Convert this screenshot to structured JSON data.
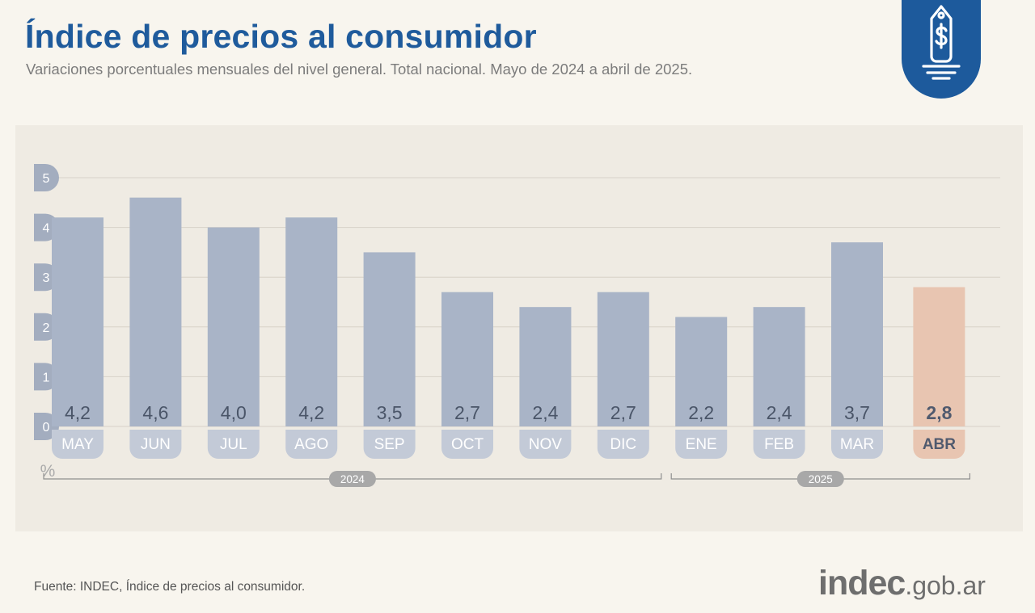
{
  "header": {
    "title": "Índice de precios al consumidor",
    "subtitle": "Variaciones porcentuales mensuales del nivel general. Total nacional. Mayo de 2024 a abril de 2025."
  },
  "badge_icon": "price-tag-dollar-icon",
  "colors": {
    "title": "#1f5b9c",
    "bar": "#a9b4c7",
    "bar_highlight": "#e8c5b1",
    "badge": "#1d5a9c",
    "label_text": "#4a5568",
    "highlight_text": "#505a6e"
  },
  "chart_data": {
    "type": "bar",
    "categories": [
      "MAY",
      "JUN",
      "JUL",
      "AGO",
      "SEP",
      "OCT",
      "NOV",
      "DIC",
      "ENE",
      "FEB",
      "MAR",
      "ABR"
    ],
    "values": [
      4.2,
      4.6,
      4.0,
      4.2,
      3.5,
      2.7,
      2.4,
      2.7,
      2.2,
      2.4,
      3.7,
      2.8
    ],
    "value_labels": [
      "4,2",
      "4,6",
      "4,0",
      "4,2",
      "3,5",
      "2,7",
      "2,4",
      "2,7",
      "2,2",
      "2,4",
      "3,7",
      "2,8"
    ],
    "highlight_index": 11,
    "ylabel": "%",
    "yticks": [
      "0",
      "1",
      "2",
      "3",
      "4",
      "5"
    ],
    "ylim": [
      0,
      5
    ],
    "grid": true,
    "year_groups": [
      {
        "label": "2024",
        "start": 0,
        "end": 7
      },
      {
        "label": "2025",
        "start": 8,
        "end": 11
      }
    ]
  },
  "footer": {
    "source": "Fuente: INDEC, Índice de precios al consumidor.",
    "logo_main": "indec",
    "logo_domain": ".gob.ar"
  }
}
